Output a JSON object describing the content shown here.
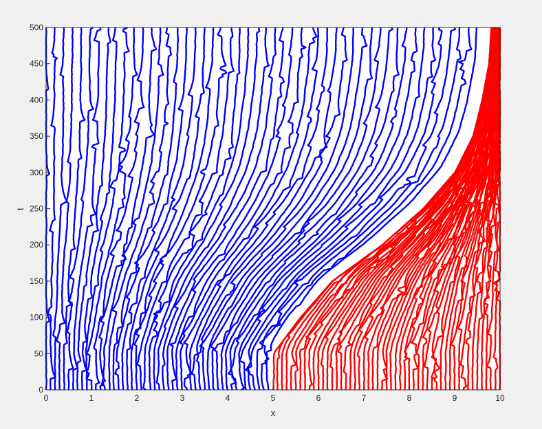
{
  "chart_data": {
    "type": "line",
    "title": "",
    "xlabel": "x",
    "ylabel": "t",
    "xlim": [
      0,
      10
    ],
    "ylim": [
      0,
      500
    ],
    "xticks": [
      "0",
      "1",
      "2",
      "3",
      "4",
      "5",
      "6",
      "7",
      "8",
      "9",
      "10"
    ],
    "yticks": [
      "0",
      "50",
      "100",
      "150",
      "200",
      "250",
      "300",
      "350",
      "400",
      "450",
      "500"
    ],
    "grid": false,
    "legend": "none",
    "series": [
      {
        "color": "#0000ff",
        "trajectory_start_x": [
          0.0,
          0.1,
          0.2,
          0.3,
          0.4,
          0.5,
          0.6,
          0.7,
          0.8,
          0.9,
          1.0,
          1.1,
          1.2,
          1.3,
          1.4,
          1.5,
          1.6,
          1.7,
          1.8,
          1.9,
          2.0,
          2.1,
          2.2,
          2.3,
          2.4,
          2.5,
          2.6,
          2.7,
          2.8,
          2.9,
          3.0,
          3.1,
          3.2,
          3.3,
          3.4,
          3.5,
          3.6,
          3.7,
          3.8,
          3.9,
          4.0,
          4.1,
          4.2,
          4.3,
          4.4,
          4.5,
          4.6,
          4.7,
          4.8,
          4.9
        ]
      },
      {
        "color": "#ff0000",
        "trajectory_start_x": [
          5.0,
          5.1,
          5.2,
          5.3,
          5.4,
          5.5,
          5.6,
          5.7,
          5.8,
          5.9,
          6.0,
          6.1,
          6.2,
          6.3,
          6.4,
          6.5,
          6.6,
          6.7,
          6.8,
          6.9,
          7.0,
          7.1,
          7.2,
          7.3,
          7.4,
          7.5,
          7.6,
          7.7,
          7.8,
          7.9,
          8.0,
          8.1,
          8.2,
          8.3,
          8.4,
          8.5,
          8.6,
          8.7,
          8.8,
          8.9,
          9.0,
          9.1,
          9.2,
          9.3,
          9.4,
          9.5,
          9.6,
          9.7,
          9.8,
          9.9,
          10.0
        ]
      }
    ],
    "interface": {
      "t": [
        0,
        50,
        100,
        150,
        200,
        250,
        300,
        350,
        400,
        450,
        500
      ],
      "x": [
        5.0,
        5.0,
        5.6,
        6.3,
        7.4,
        8.3,
        9.0,
        9.4,
        9.6,
        9.75,
        9.8
      ]
    }
  }
}
